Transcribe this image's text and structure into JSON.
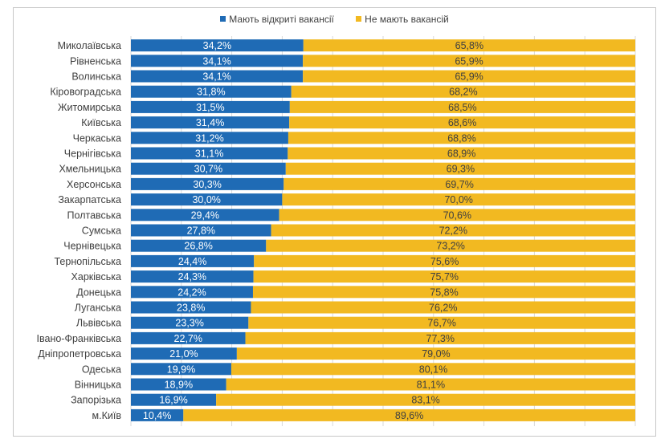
{
  "chart_data": {
    "type": "bar",
    "orientation": "horizontal",
    "stacked": "100%",
    "title": "",
    "xlabel": "",
    "ylabel": "",
    "xlim": [
      0,
      100
    ],
    "grid": true,
    "legend_position": "top-center",
    "categories": [
      "Миколаївська",
      "Рівненська",
      "Волинська",
      "Кіровоградська",
      "Житомирська",
      "Київська",
      "Черкаська",
      "Чернігівська",
      "Хмельницька",
      "Херсонська",
      "Закарпатська",
      "Полтавська",
      "Сумська",
      "Чернівецька",
      "Тернопільська",
      "Харківська",
      "Донецька",
      "Луганська",
      "Львівська",
      "Івано-Франківська",
      "Дніпропетровська",
      "Одеська",
      "Вінницька",
      "Запорізька",
      "м.Київ"
    ],
    "series": [
      {
        "name": "Мають відкриті вакансії",
        "color": "#1f6bb5",
        "values": [
          34.2,
          34.1,
          34.1,
          31.8,
          31.5,
          31.4,
          31.2,
          31.1,
          30.7,
          30.3,
          30.0,
          29.4,
          27.8,
          26.8,
          24.4,
          24.3,
          24.2,
          23.8,
          23.3,
          22.7,
          21.0,
          19.9,
          18.9,
          16.9,
          10.4
        ],
        "labels": [
          "34,2%",
          "34,1%",
          "34,1%",
          "31,8%",
          "31,5%",
          "31,4%",
          "31,2%",
          "31,1%",
          "30,7%",
          "30,3%",
          "30,0%",
          "29,4%",
          "27,8%",
          "26,8%",
          "24,4%",
          "24,3%",
          "24,2%",
          "23,8%",
          "23,3%",
          "22,7%",
          "21,0%",
          "19,9%",
          "18,9%",
          "16,9%",
          "10,4%"
        ]
      },
      {
        "name": "Не мають вакансій",
        "color": "#f2b921",
        "values": [
          65.8,
          65.9,
          65.9,
          68.2,
          68.5,
          68.6,
          68.8,
          68.9,
          69.3,
          69.7,
          70.0,
          70.6,
          72.2,
          73.2,
          75.6,
          75.7,
          75.8,
          76.2,
          76.7,
          77.3,
          79.0,
          80.1,
          81.1,
          83.1,
          89.6
        ],
        "labels": [
          "65,8%",
          "65,9%",
          "65,9%",
          "68,2%",
          "68,5%",
          "68,6%",
          "68,8%",
          "68,9%",
          "69,3%",
          "69,7%",
          "70,0%",
          "70,6%",
          "72,2%",
          "73,2%",
          "75,6%",
          "75,7%",
          "75,8%",
          "76,2%",
          "76,7%",
          "77,3%",
          "79,0%",
          "80,1%",
          "81,1%",
          "83,1%",
          "89,6%"
        ]
      }
    ]
  }
}
